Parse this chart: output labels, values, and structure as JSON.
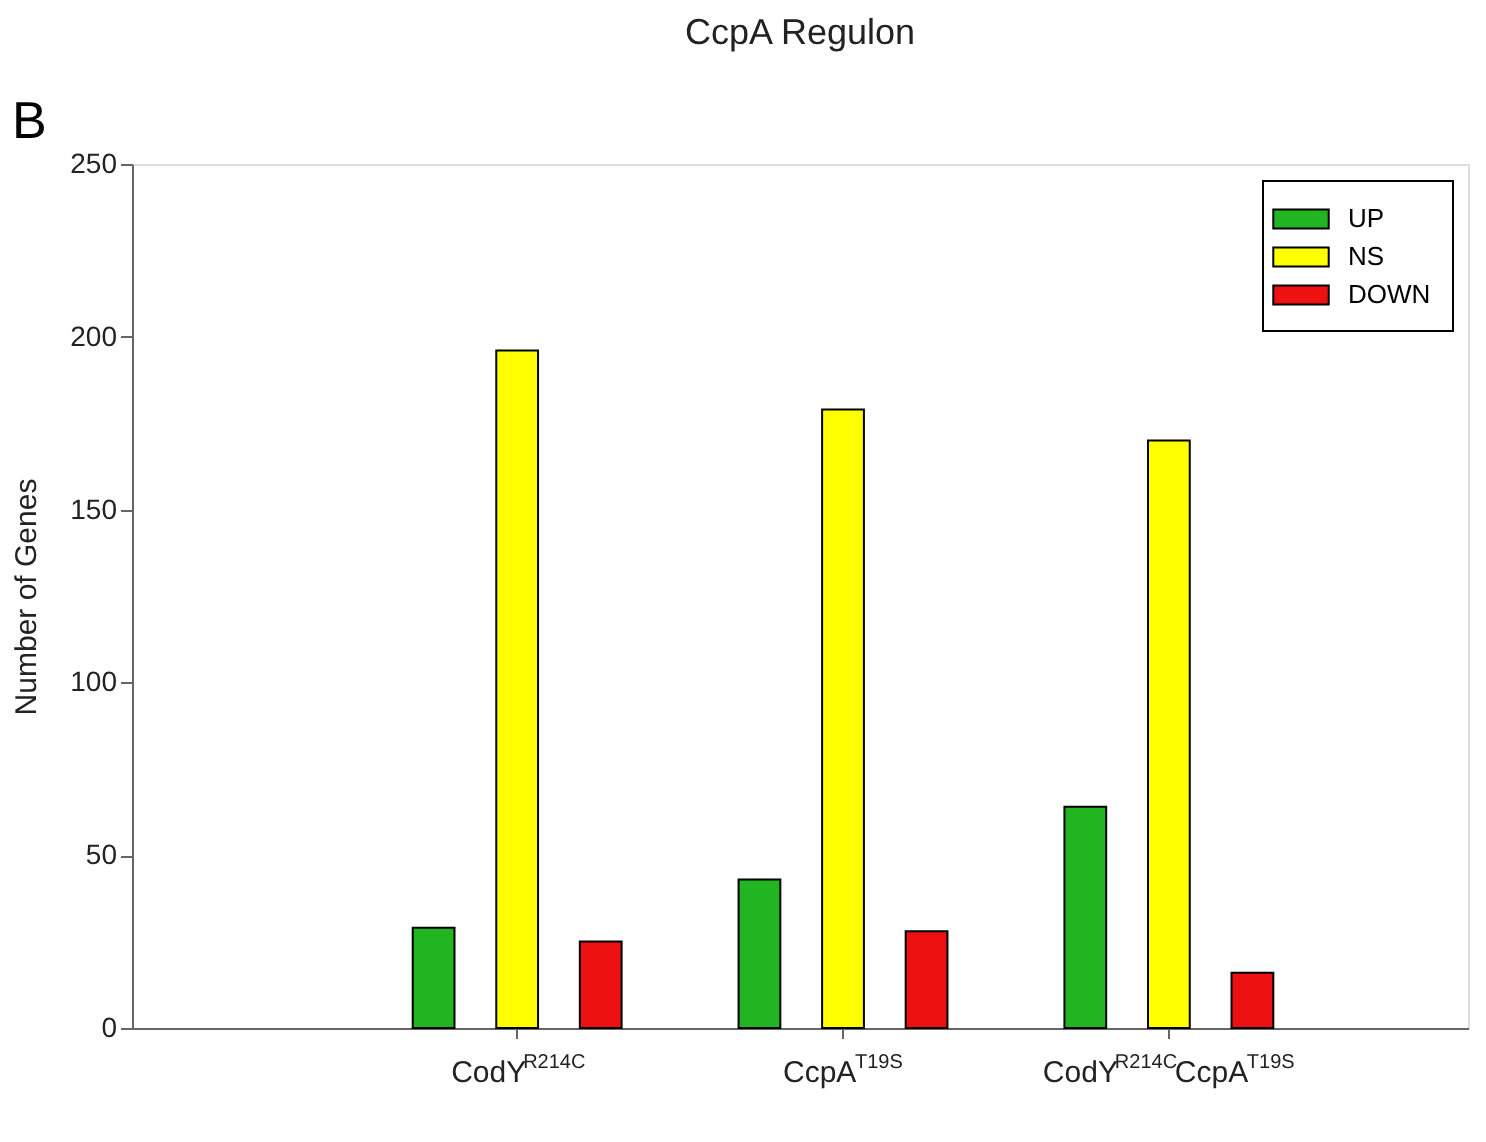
{
  "chart_data": {
    "type": "bar",
    "title": "CcpA Regulon",
    "ylabel": "Number of Genes",
    "annotations": [
      "B"
    ],
    "categories": [
      "CodY$^{R214C}$",
      "CcpA$^{T19S}$",
      "CodY$^{R214C}$CcpA$^{T19S}$"
    ],
    "series": [
      {
        "name": "UP",
        "color": "#22b522",
        "values": [
          29,
          43,
          64
        ]
      },
      {
        "name": "NS",
        "color": "#ffff00",
        "values": [
          196,
          179,
          170
        ]
      },
      {
        "name": "DOWN",
        "color": "#ee1111",
        "values": [
          25,
          28,
          16
        ]
      }
    ],
    "ylim": [
      0,
      250
    ],
    "yticks": [
      0,
      50,
      100,
      150,
      200,
      250
    ],
    "legend": "top right",
    "grid": false
  }
}
